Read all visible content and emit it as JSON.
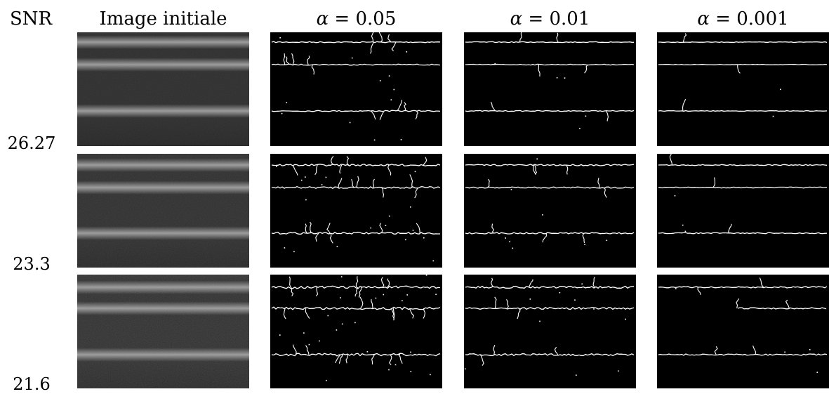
{
  "headers": {
    "snr": "SNR",
    "initial": "Image initiale",
    "alpha_symbol": "α",
    "alphas": [
      "0.05",
      "0.01",
      "0.001"
    ]
  },
  "rows": [
    {
      "snr": "26.27"
    },
    {
      "snr": "23.3"
    },
    {
      "snr": "21.6"
    }
  ],
  "colors": {
    "background": "#ffffff",
    "detection_bg": "#000000",
    "edge": "#ffffff"
  }
}
